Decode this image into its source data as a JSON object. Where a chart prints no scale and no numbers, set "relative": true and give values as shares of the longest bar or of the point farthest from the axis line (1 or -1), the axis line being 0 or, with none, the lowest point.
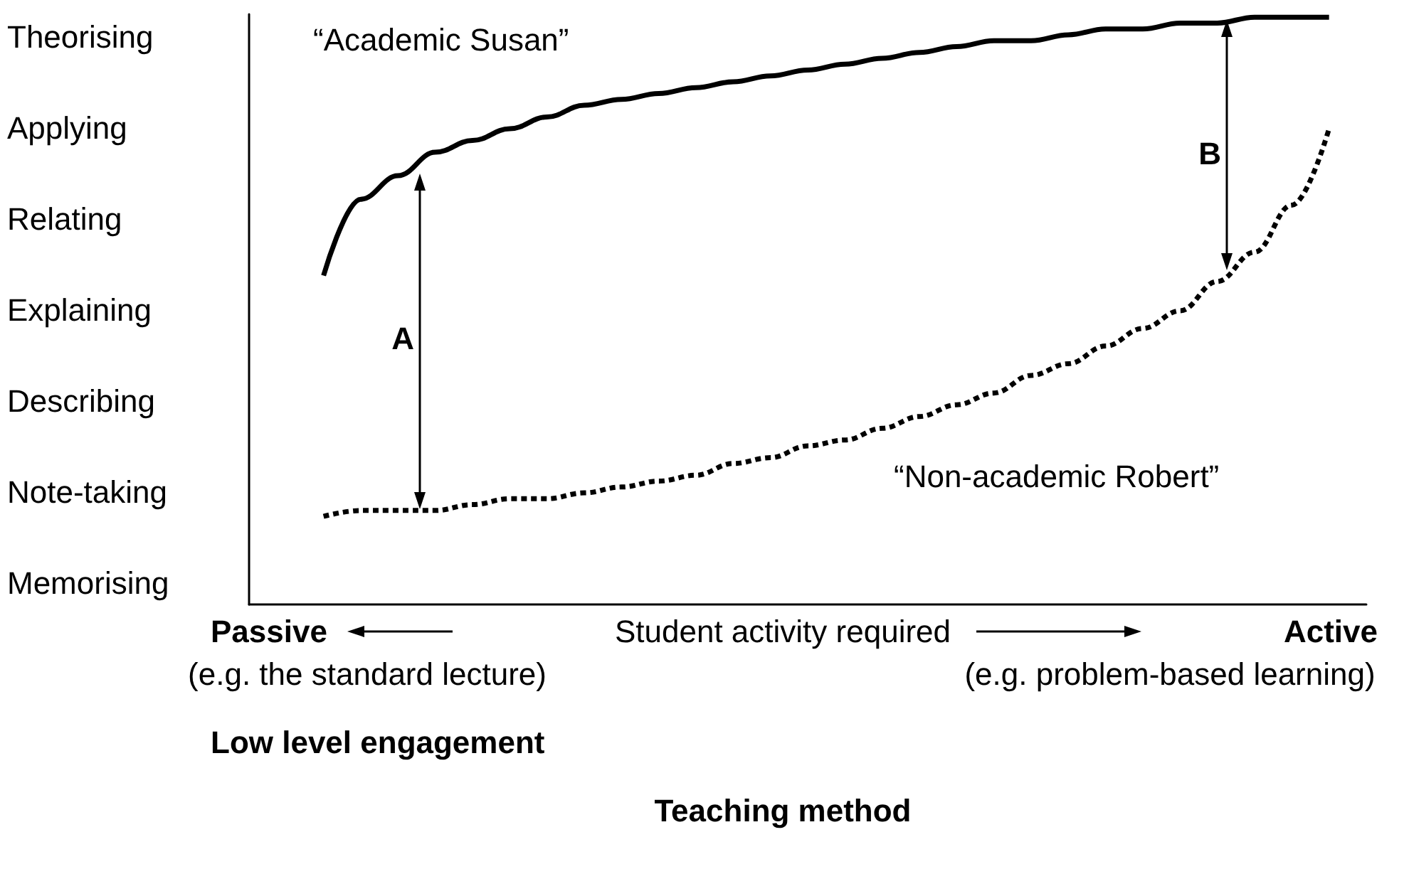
{
  "chart_data": {
    "type": "line",
    "relative": true,
    "categories": [
      null,
      null,
      null,
      null,
      null,
      null,
      null,
      null,
      null,
      null,
      null,
      null,
      null,
      null,
      null,
      null,
      null,
      null,
      null,
      null,
      null,
      null,
      null,
      null,
      null,
      null,
      null,
      null,
      null,
      null,
      null
    ],
    "series": [
      {
        "name": "“Academic Susan”",
        "color": "#000000",
        "line_style": "solid",
        "values": [
          null,
          null,
          0.56,
          0.69,
          0.73,
          0.77,
          0.79,
          0.81,
          0.83,
          0.85,
          0.86,
          0.87,
          0.88,
          0.89,
          0.9,
          0.91,
          0.92,
          0.93,
          0.94,
          0.95,
          0.96,
          0.96,
          0.97,
          0.98,
          0.98,
          0.99,
          0.99,
          1,
          1,
          1,
          null
        ]
      },
      {
        "name": "“Non-academic Robert”",
        "color": "#000000",
        "line_style": "dashed",
        "values": [
          null,
          null,
          0.15,
          0.16,
          0.16,
          0.16,
          0.17,
          0.18,
          0.18,
          0.19,
          0.2,
          0.21,
          0.22,
          0.24,
          0.25,
          0.27,
          0.28,
          0.3,
          0.32,
          0.34,
          0.36,
          0.39,
          0.41,
          0.44,
          0.47,
          0.5,
          0.55,
          0.6,
          0.68,
          0.81,
          null
        ]
      }
    ],
    "grid": false,
    "marker": "none",
    "annotations": [
      "Theorising",
      "Applying",
      "Relating",
      "Explaining",
      "Describing",
      "Note-taking",
      "Memorising",
      "A",
      "B",
      "Passive",
      "Student activity required",
      "Active",
      "(e.g. the standard lecture)",
      "(e.g. problem-based learning)",
      "Low level engagement",
      "Teaching method"
    ]
  }
}
